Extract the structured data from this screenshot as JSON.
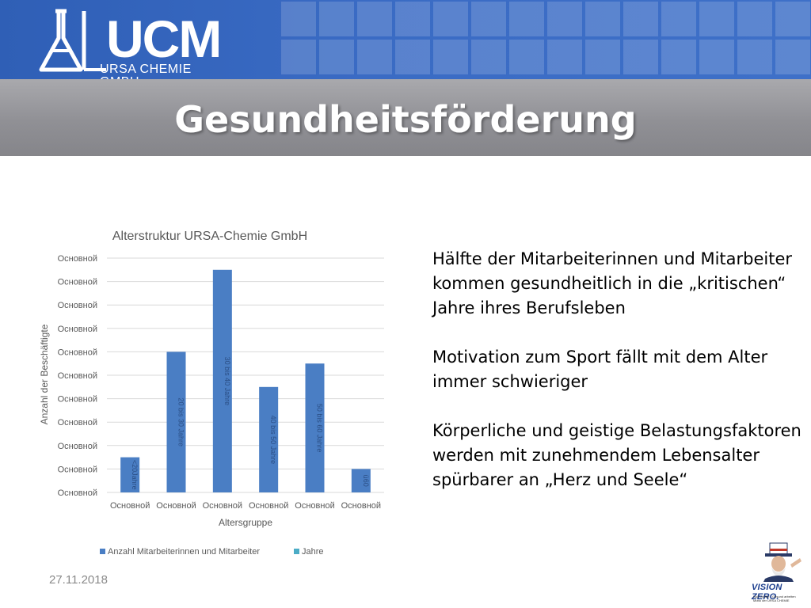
{
  "header": {
    "logo_text": "UCM",
    "logo_subtext": "URSA CHEMIE GMBH"
  },
  "slide": {
    "title": "Gesundheitsförderung",
    "date": "27.11.2018"
  },
  "body": {
    "paragraphs": [
      "Hälfte der Mitarbeiterinnen und Mitarbeiter kommen gesundheitlich in die „kritischen“ Jahre ihres Berufsleben",
      "Motivation zum Sport fällt mit dem Alter immer schwieriger",
      "Körperliche und geistige Belastungsfaktoren werden mit zunehmendem Lebensalter spürbarer an „Herz und Seele“"
    ]
  },
  "footer_logo": {
    "text": "VISION ZERO.",
    "small_lines": [
      "Null Unfälle · Gesund arbeiten",
      "Motto der URSA CHEMIE"
    ]
  },
  "colors": {
    "bar": "#4a7ec4",
    "legend_jahre": "#4bacc6",
    "grid": "#d9d9d9",
    "axis_text": "#595959"
  },
  "chart_data": {
    "type": "bar",
    "title": "Alterstruktur URSA-Chemie GmbH",
    "xlabel": "Altersgruppe",
    "ylabel": "Anzahl der Beschäftigte",
    "y_tick_labels": [
      "Основной",
      "Основной",
      "Основной",
      "Основной",
      "Основной",
      "Основной",
      "Основной",
      "Основной",
      "Основной",
      "Основной",
      "Основной"
    ],
    "x_tick_labels": [
      "Основной",
      "Основной",
      "Основной",
      "Основной",
      "Основной",
      "Основной"
    ],
    "categories": [
      "<20Jahre",
      "20 bis 30 Jahre",
      "30 bis 40 Jahre",
      "40 bis 50 Jahre",
      "50 bis 60 Jahre",
      "ü60"
    ],
    "series": [
      {
        "name": "Anzahl Mitarbeiterinnen und Mitarbeiter",
        "values": [
          1.5,
          6,
          9.5,
          4.5,
          5.5,
          1
        ]
      }
    ],
    "legend_entries": [
      "Anzahl Mitarbeiterinnen und Mitarbeiter",
      "Jahre"
    ],
    "ylim": [
      0,
      10
    ],
    "grid": true,
    "legend_position": "bottom"
  }
}
